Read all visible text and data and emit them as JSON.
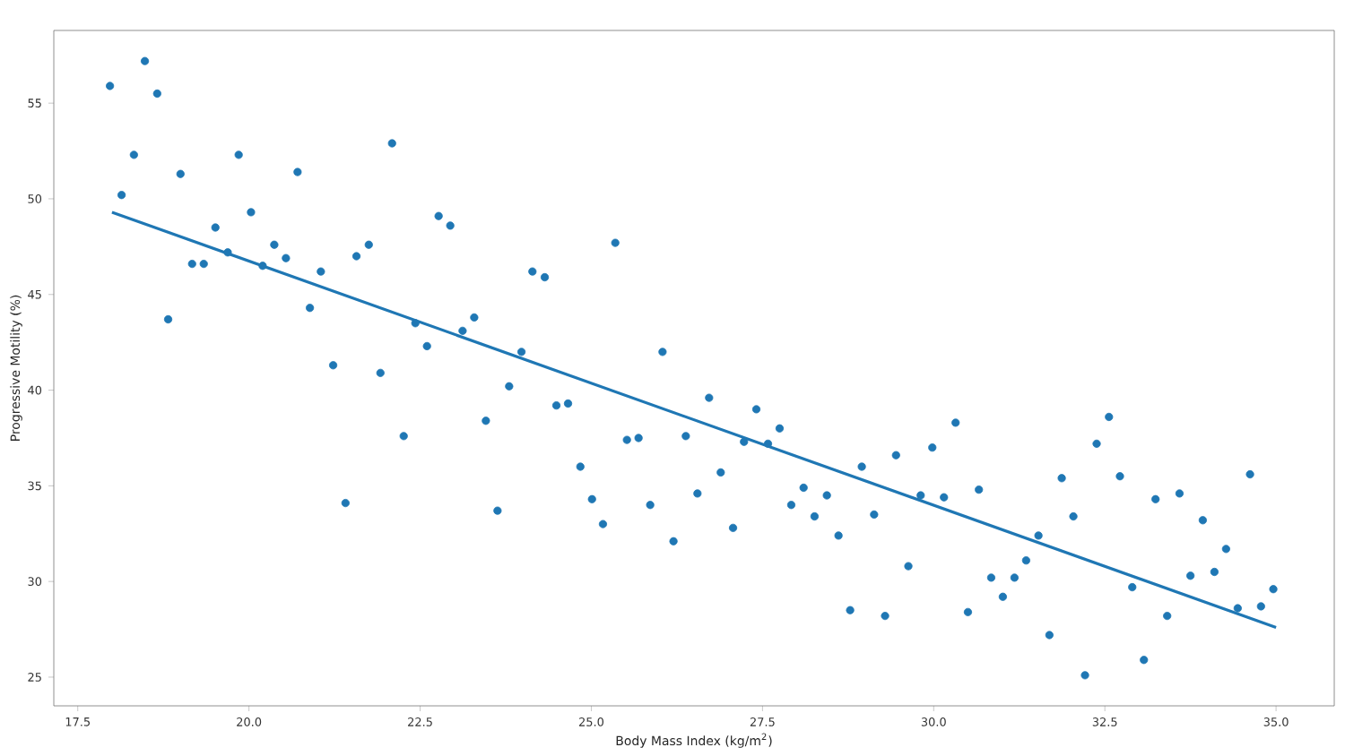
{
  "chart_data": {
    "type": "scatter",
    "xlabel": "Body Mass Index (kg/m$^{2}$)",
    "ylabel": "Progressive Motility (%)",
    "xlim": [
      17.15,
      35.85
    ],
    "ylim": [
      23.5,
      58.8
    ],
    "xticks": [
      {
        "value": 17.5,
        "label": "17.5"
      },
      {
        "value": 20,
        "label": "20.0"
      },
      {
        "value": 22.5,
        "label": "22.5"
      },
      {
        "value": 25,
        "label": "25.0"
      },
      {
        "value": 27.5,
        "label": "27.5"
      },
      {
        "value": 30,
        "label": "30.0"
      },
      {
        "value": 32.5,
        "label": "32.5"
      },
      {
        "value": 35,
        "label": "35.0"
      }
    ],
    "yticks": [
      25,
      30,
      35,
      40,
      45,
      50,
      55
    ],
    "grid": false,
    "series": [
      {
        "marker": "circle",
        "color": "#1f77b4",
        "x": [
          17.97,
          18.14,
          18.32,
          18.48,
          18.66,
          18.82,
          19.0,
          19.17,
          19.34,
          19.51,
          19.69,
          19.85,
          20.03,
          20.2,
          20.37,
          20.54,
          20.71,
          20.89,
          21.05,
          21.23,
          21.41,
          21.57,
          21.75,
          21.92,
          22.09,
          22.26,
          22.43,
          22.6,
          22.77,
          22.94,
          23.12,
          23.29,
          23.46,
          23.63,
          23.8,
          23.98,
          24.14,
          24.32,
          24.49,
          24.66,
          24.84,
          25.01,
          25.17,
          25.35,
          25.52,
          25.69,
          25.86,
          26.04,
          26.2,
          26.38,
          26.55,
          26.72,
          26.89,
          27.07,
          27.23,
          27.41,
          27.58,
          27.75,
          27.92,
          28.1,
          28.26,
          28.44,
          28.61,
          28.78,
          28.95,
          29.13,
          29.29,
          29.45,
          29.63,
          29.81,
          29.98,
          30.15,
          30.32,
          30.5,
          30.66,
          30.84,
          31.01,
          31.18,
          31.35,
          31.53,
          31.69,
          31.87,
          32.04,
          32.21,
          32.38,
          32.56,
          32.72,
          32.9,
          33.07,
          33.24,
          33.41,
          33.59,
          33.75,
          33.93,
          34.1,
          34.27,
          34.44,
          34.62,
          34.78,
          34.96
        ],
        "values": [
          55.9,
          50.2,
          52.3,
          57.2,
          55.5,
          43.7,
          51.3,
          46.6,
          46.6,
          48.5,
          47.2,
          52.3,
          49.3,
          46.5,
          47.6,
          46.9,
          51.4,
          44.3,
          46.2,
          41.3,
          34.1,
          47.0,
          47.6,
          40.9,
          52.9,
          37.6,
          43.5,
          42.3,
          49.1,
          48.6,
          43.1,
          43.8,
          38.4,
          33.7,
          40.2,
          42.0,
          46.2,
          45.9,
          39.2,
          39.3,
          36.0,
          34.3,
          33.0,
          47.7,
          37.4,
          37.5,
          34.0,
          42.0,
          32.1,
          37.6,
          34.6,
          39.6,
          35.7,
          32.8,
          37.3,
          39.0,
          37.2,
          38.0,
          34.0,
          34.9,
          33.4,
          34.5,
          32.4,
          28.5,
          36.0,
          33.5,
          28.2,
          36.6,
          30.8,
          34.5,
          37.0,
          34.4,
          38.3,
          28.4,
          34.8,
          30.2,
          29.2,
          30.2,
          31.1,
          32.4,
          27.2,
          35.4,
          33.4,
          25.1,
          37.2,
          38.6,
          35.5,
          29.7,
          25.9,
          34.3,
          28.2,
          34.6,
          30.3,
          33.2,
          30.5,
          31.7,
          28.6,
          35.6,
          28.7,
          29.6
        ]
      },
      {
        "type": "line",
        "marker": "none",
        "color": "#1f77b4",
        "x": [
          18,
          35
        ],
        "values": [
          49.3,
          27.6
        ]
      }
    ]
  }
}
